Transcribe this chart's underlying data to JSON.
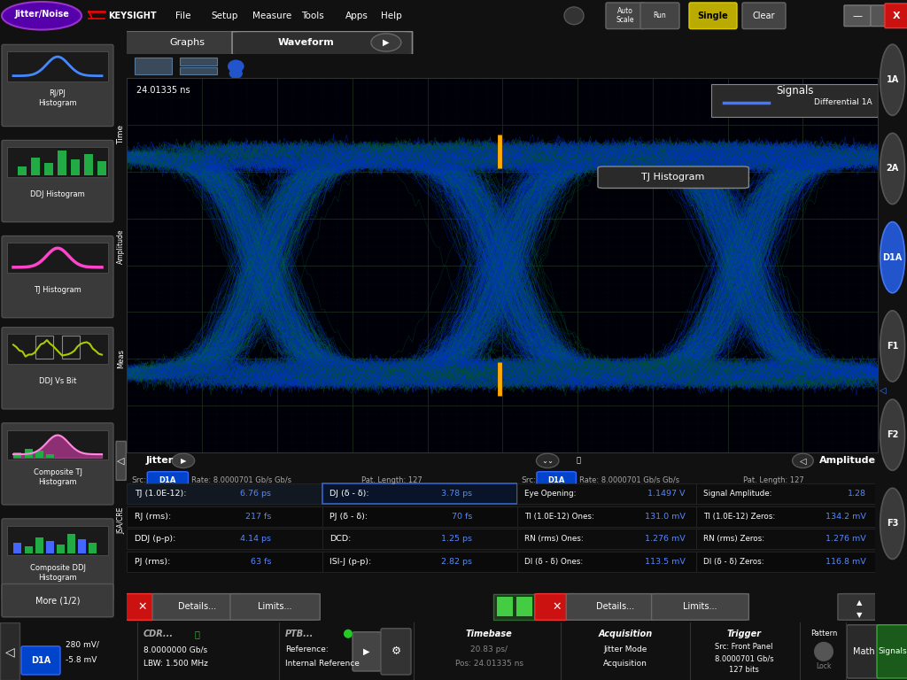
{
  "bg_color": "#111111",
  "toolbar_bg": "#1a1a1a",
  "sidebar_bg": "#1a1a1a",
  "waveform_bg": "#000005",
  "panel_bg": "#0a0a0a",
  "tab_bar_bg": "#111111",
  "grid_color": "#1e2a1e",
  "text_white": "#ffffff",
  "text_gray": "#aaaaaa",
  "text_blue": "#5588ff",
  "eye_blue": "#0033cc",
  "eye_green": "#007722",
  "highlight_orange": "#ffaa00",
  "signal_legend_text": "Differential 1A",
  "timestamp": "24.01335 ns",
  "jitter_data": {
    "src": "D1A",
    "rate": "8.0000701 Gb/s",
    "pat_length": "127",
    "tj": "6.76 ps",
    "rj": "217 fs",
    "ddj": "4.14 ps",
    "pj_rms": "63 fs",
    "dj": "3.78 ps",
    "pj_dd": "70 fs",
    "dcd": "1.25 ps",
    "isi_j": "2.82 ps"
  },
  "amplitude_data": {
    "src": "D1A",
    "rate": "8.0000701 Gb/s",
    "pat_length": "127",
    "eye_opening": "1.1497 V",
    "signal_amplitude": "1.28",
    "ti_ones": "131.0 mV",
    "ti_zeros": "134.2 mV",
    "rn_ones": "1.276 mV",
    "rn_zeros": "1.276 mV",
    "di_ones": "113.5 mV",
    "di_zeros": "116.8 mV"
  },
  "side_buttons": [
    "1A",
    "2A",
    "D1A",
    "F1",
    "F2",
    "F3"
  ],
  "menu_items": [
    "File",
    "Setup",
    "Measure",
    "Tools",
    "Apps",
    "Help"
  ]
}
